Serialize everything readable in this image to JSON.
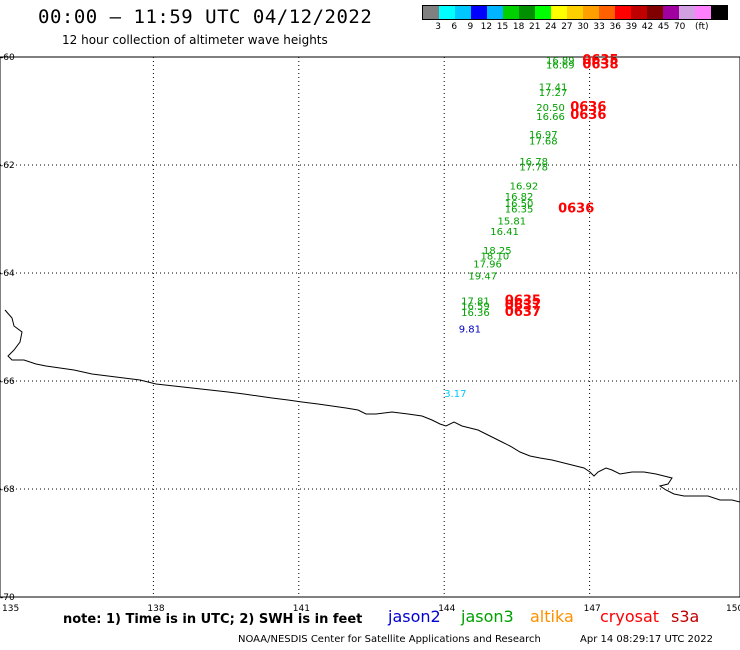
{
  "header": {
    "title": "00:00 – 11:59 UTC 04/12/2022",
    "subtitle": "12 hour collection of altimeter wave heights"
  },
  "color_scale": {
    "colors": [
      "#808080",
      "#00ffff",
      "#00c8ff",
      "#0000ff",
      "#00b4ff",
      "#00d000",
      "#009000",
      "#00ff00",
      "#ffff00",
      "#ffd000",
      "#ffa000",
      "#ff6000",
      "#ff0000",
      "#c00000",
      "#800000",
      "#a000a0",
      "#d0a0e0",
      "#ff80ff",
      "#000000"
    ],
    "labels": [
      "3",
      "6",
      "9",
      "12",
      "15",
      "18",
      "21",
      "24",
      "27",
      "30",
      "33",
      "36",
      "39",
      "42",
      "45",
      "70",
      "(ft)"
    ]
  },
  "map": {
    "lon_labels": [
      "135",
      "138",
      "141",
      "144",
      "147",
      "150"
    ],
    "lat_labels": [
      "-60",
      "-62",
      "-64",
      "-66",
      "-68",
      "-70"
    ],
    "observations": [
      {
        "text": "16.89",
        "lon": 146.1,
        "lat": -60.13,
        "color": "#00a000"
      },
      {
        "text": "16.69",
        "lon": 146.1,
        "lat": -60.21,
        "color": "#00a000"
      },
      {
        "text": "0635",
        "lon": 146.85,
        "lat": -60.13,
        "color": "#ff0000",
        "bold": true
      },
      {
        "text": "0638",
        "lon": 146.85,
        "lat": -60.21,
        "color": "#ff0000",
        "bold": true
      },
      {
        "text": "17.41",
        "lon": 145.95,
        "lat": -60.62,
        "color": "#00a000"
      },
      {
        "text": "17.27",
        "lon": 145.95,
        "lat": -60.72,
        "color": "#00a000"
      },
      {
        "text": "20.50",
        "lon": 145.9,
        "lat": -61.0,
        "color": "#00a000"
      },
      {
        "text": "0636",
        "lon": 146.6,
        "lat": -61.0,
        "color": "#ff0000",
        "bold": true
      },
      {
        "text": "16.66",
        "lon": 145.9,
        "lat": -61.17,
        "color": "#00a000"
      },
      {
        "text": "0636",
        "lon": 146.6,
        "lat": -61.15,
        "color": "#ff0000",
        "bold": true
      },
      {
        "text": "16.97",
        "lon": 145.75,
        "lat": -61.5,
        "color": "#00a000"
      },
      {
        "text": "17.68",
        "lon": 145.75,
        "lat": -61.62,
        "color": "#00a000"
      },
      {
        "text": "16.78",
        "lon": 145.55,
        "lat": -62.0,
        "color": "#00a000"
      },
      {
        "text": "17.78",
        "lon": 145.55,
        "lat": -62.1,
        "color": "#00a000"
      },
      {
        "text": "16.92",
        "lon": 145.35,
        "lat": -62.45,
        "color": "#00a000"
      },
      {
        "text": "16.82",
        "lon": 145.25,
        "lat": -62.65,
        "color": "#00a000"
      },
      {
        "text": "16.50",
        "lon": 145.25,
        "lat": -62.78,
        "color": "#00a000"
      },
      {
        "text": "16.35",
        "lon": 145.25,
        "lat": -62.88,
        "color": "#00a000"
      },
      {
        "text": "0636",
        "lon": 146.35,
        "lat": -62.88,
        "color": "#ff0000",
        "bold": true
      },
      {
        "text": "15.81",
        "lon": 145.1,
        "lat": -63.1,
        "color": "#00a000"
      },
      {
        "text": "16.41",
        "lon": 144.95,
        "lat": -63.3,
        "color": "#00a000"
      },
      {
        "text": "18.25",
        "lon": 144.8,
        "lat": -63.65,
        "color": "#00a000"
      },
      {
        "text": "18.10",
        "lon": 144.75,
        "lat": -63.75,
        "color": "#00a000"
      },
      {
        "text": "17.96",
        "lon": 144.6,
        "lat": -63.9,
        "color": "#00a000"
      },
      {
        "text": "19.47",
        "lon": 144.5,
        "lat": -64.12,
        "color": "#00a000"
      },
      {
        "text": "17.81",
        "lon": 144.35,
        "lat": -64.58,
        "color": "#00a000"
      },
      {
        "text": "0635",
        "lon": 145.25,
        "lat": -64.58,
        "color": "#ff0000",
        "bold": true
      },
      {
        "text": "16.59",
        "lon": 144.35,
        "lat": -64.68,
        "color": "#00a000"
      },
      {
        "text": "0637",
        "lon": 145.25,
        "lat": -64.68,
        "color": "#ff0000",
        "bold": true
      },
      {
        "text": "16.36",
        "lon": 144.35,
        "lat": -64.8,
        "color": "#00a000"
      },
      {
        "text": "0637",
        "lon": 145.25,
        "lat": -64.8,
        "color": "#ff0000",
        "bold": true
      },
      {
        "text": "9.81",
        "lon": 144.3,
        "lat": -65.1,
        "color": "#0000c0"
      },
      {
        "text": "3.17",
        "lon": 144.0,
        "lat": -66.3,
        "color": "#00c8ff"
      }
    ]
  },
  "footer": {
    "note": "note: 1) Time is in UTC; 2) SWH is in feet",
    "satellites": [
      {
        "name": "jason2",
        "color": "#0000d0"
      },
      {
        "name": "jason3",
        "color": "#00a000"
      },
      {
        "name": "altika",
        "color": "#ff9000"
      },
      {
        "name": "cryosat",
        "color": "#ff0000"
      },
      {
        "name": "s3a",
        "color": "#c00000"
      }
    ],
    "credit": "NOAA/NESDIS Center for Satellite Applications and Research",
    "timestamp": "Apr 14 08:29:17 UTC 2022"
  }
}
